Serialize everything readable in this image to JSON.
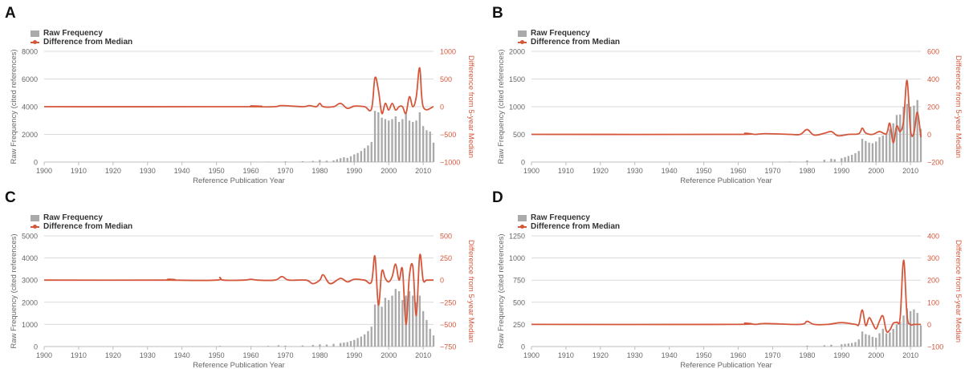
{
  "colors": {
    "bar": "#aaaaaa",
    "line": "#d4573b",
    "grid": "#d9d9d9",
    "axis_text": "#666666"
  },
  "chart_data": [
    {
      "panel": "A",
      "type": "bar+line",
      "legend": [
        "Raw Frequency",
        "Difference from Median"
      ],
      "xlabel": "Reference Publication Year",
      "ylabel_left": "Raw Frequency (cited references)",
      "ylabel_right": "Difference from 5-year Median",
      "xlim": [
        1900,
        2013
      ],
      "xticks": [
        1900,
        1910,
        1920,
        1930,
        1940,
        1950,
        1960,
        1970,
        1980,
        1990,
        2000,
        2010
      ],
      "ylim_left": [
        0,
        8000
      ],
      "yticks_left": [
        0,
        2000,
        4000,
        6000,
        8000
      ],
      "ylim_right": [
        -1000,
        1000
      ],
      "yticks_right": [
        -1000,
        -500,
        0,
        500,
        1000
      ],
      "bars": {
        "x": [
          1960,
          1965,
          1970,
          1975,
          1978,
          1980,
          1982,
          1984,
          1985,
          1986,
          1987,
          1988,
          1989,
          1990,
          1991,
          1992,
          1993,
          1994,
          1995,
          1996,
          1997,
          1998,
          1999,
          2000,
          2001,
          2002,
          2003,
          2004,
          2005,
          2006,
          2007,
          2008,
          2009,
          2010,
          2011,
          2012,
          2013
        ],
        "values": [
          20,
          30,
          50,
          60,
          80,
          150,
          100,
          120,
          200,
          280,
          350,
          300,
          420,
          550,
          650,
          800,
          1000,
          1200,
          1450,
          3700,
          3600,
          3200,
          3100,
          3000,
          3100,
          3300,
          2900,
          3100,
          3500,
          3000,
          2900,
          3000,
          3600,
          2600,
          2300,
          2200,
          1400
        ]
      },
      "diff_line": {
        "x": [
          1900,
          1958,
          1960,
          1962,
          1967,
          1969,
          1975,
          1977,
          1979,
          1980,
          1981,
          1984,
          1986,
          1988,
          1990,
          1993,
          1995,
          1996,
          1997,
          1998,
          1999,
          2000,
          2001,
          2002,
          2003,
          2004,
          2005,
          2006,
          2007,
          2008,
          2009,
          2010,
          2013
        ],
        "values": [
          0,
          0,
          15,
          0,
          0,
          20,
          0,
          20,
          0,
          60,
          0,
          0,
          60,
          -30,
          10,
          0,
          -40,
          520,
          300,
          -120,
          60,
          -60,
          60,
          -60,
          0,
          0,
          -120,
          180,
          0,
          180,
          700,
          0,
          0
        ]
      }
    },
    {
      "panel": "B",
      "type": "bar+line",
      "legend": [
        "Raw Frequency",
        "Difference from Median"
      ],
      "xlabel": "Reference Publication Year",
      "ylabel_left": "Raw Frequency (cited references)",
      "ylabel_right": "Difference from 5-year Median",
      "xlim": [
        1900,
        2013
      ],
      "xticks": [
        1900,
        1910,
        1920,
        1930,
        1940,
        1950,
        1960,
        1970,
        1980,
        1990,
        2000,
        2010
      ],
      "ylim_left": [
        0,
        2000
      ],
      "yticks_left": [
        0,
        500,
        1000,
        1500,
        2000
      ],
      "ylim_right": [
        -200,
        600
      ],
      "yticks_right": [
        -200,
        0,
        200,
        400,
        600
      ],
      "bars": {
        "x": [
          1975,
          1980,
          1985,
          1987,
          1988,
          1990,
          1991,
          1992,
          1993,
          1994,
          1995,
          1996,
          1997,
          1998,
          1999,
          2000,
          2001,
          2002,
          2003,
          2004,
          2005,
          2006,
          2007,
          2008,
          2009,
          2010,
          2011,
          2012,
          2013
        ],
        "values": [
          10,
          30,
          40,
          60,
          50,
          70,
          90,
          110,
          130,
          160,
          200,
          420,
          380,
          350,
          340,
          370,
          450,
          480,
          520,
          600,
          700,
          850,
          860,
          1000,
          1050,
          1000,
          1020,
          1120,
          600
        ]
      },
      "diff_line": {
        "x": [
          1900,
          1958,
          1962,
          1965,
          1968,
          1975,
          1978,
          1980,
          1982,
          1985,
          1987,
          1989,
          1992,
          1995,
          1996,
          1997,
          1999,
          2001,
          2003,
          2004,
          2005,
          2006,
          2007,
          2008,
          2009,
          2010,
          2011,
          2012,
          2013
        ],
        "values": [
          0,
          0,
          8,
          0,
          5,
          0,
          0,
          35,
          -5,
          8,
          20,
          -10,
          0,
          5,
          45,
          10,
          0,
          20,
          5,
          80,
          -60,
          60,
          20,
          100,
          390,
          30,
          10,
          160,
          -20
        ]
      }
    },
    {
      "panel": "C",
      "type": "bar+line",
      "legend": [
        "Raw Frequency",
        "Difference from Median"
      ],
      "xlabel": "Reference Publication Year",
      "ylabel_left": "Raw Frequency (cited references)",
      "ylabel_right": "Difference from 5-year Median",
      "xlim": [
        1900,
        2013
      ],
      "xticks": [
        1900,
        1910,
        1920,
        1930,
        1940,
        1950,
        1960,
        1970,
        1980,
        1990,
        2000,
        2010
      ],
      "ylim_left": [
        0,
        5000
      ],
      "yticks_left": [
        0,
        1000,
        2000,
        3000,
        4000,
        5000
      ],
      "ylim_right": [
        -750,
        500
      ],
      "yticks_right": [
        -750,
        -500,
        -250,
        0,
        250,
        500
      ],
      "bars": {
        "x": [
          1951,
          1960,
          1965,
          1968,
          1970,
          1975,
          1978,
          1980,
          1982,
          1984,
          1986,
          1987,
          1988,
          1989,
          1990,
          1991,
          1992,
          1993,
          1994,
          1995,
          1996,
          1997,
          1998,
          1999,
          2000,
          2001,
          2002,
          2003,
          2004,
          2005,
          2006,
          2007,
          2008,
          2009,
          2010,
          2011,
          2012,
          2013
        ],
        "values": [
          30,
          20,
          30,
          60,
          40,
          50,
          70,
          100,
          90,
          120,
          160,
          180,
          200,
          250,
          300,
          380,
          450,
          550,
          700,
          900,
          1900,
          2000,
          1800,
          2200,
          2100,
          2300,
          2600,
          2500,
          2100,
          2300,
          2500,
          2300,
          2000,
          2300,
          1600,
          1200,
          800,
          500
        ]
      },
      "diff_line": {
        "x": [
          1900,
          1935,
          1936,
          1937,
          1950,
          1951,
          1952,
          1958,
          1960,
          1962,
          1967,
          1969,
          1971,
          1976,
          1978,
          1980,
          1981,
          1983,
          1986,
          1988,
          1990,
          1993,
          1995,
          1996,
          1997,
          1998,
          1999,
          2000,
          2001,
          2002,
          2003,
          2004,
          2005,
          2006,
          2007,
          2008,
          2009,
          2010,
          2011,
          2013
        ],
        "values": [
          0,
          0,
          10,
          0,
          0,
          30,
          0,
          0,
          10,
          0,
          0,
          40,
          0,
          0,
          -40,
          0,
          60,
          -40,
          20,
          -20,
          10,
          0,
          -20,
          270,
          -280,
          100,
          20,
          -20,
          40,
          180,
          0,
          120,
          -500,
          50,
          150,
          -400,
          280,
          0,
          0,
          0
        ]
      }
    },
    {
      "panel": "D",
      "type": "bar+line",
      "legend": [
        "Raw Frequency",
        "Difference from Median"
      ],
      "xlabel": "Reference Publication Year",
      "ylabel_left": "Raw Frequency (cited references)",
      "ylabel_right": "Difference from 5-year Median",
      "xlim": [
        1900,
        2013
      ],
      "xticks": [
        1900,
        1910,
        1920,
        1930,
        1940,
        1950,
        1960,
        1970,
        1980,
        1990,
        2000,
        2010
      ],
      "ylim_left": [
        0,
        1250
      ],
      "yticks_left": [
        0,
        250,
        500,
        750,
        1000,
        1250
      ],
      "ylim_right": [
        -100,
        400
      ],
      "yticks_right": [
        -100,
        0,
        100,
        200,
        300,
        400
      ],
      "bars": {
        "x": [
          1980,
          1985,
          1987,
          1990,
          1991,
          1992,
          1993,
          1994,
          1995,
          1996,
          1997,
          1998,
          1999,
          2000,
          2001,
          2002,
          2003,
          2004,
          2005,
          2006,
          2007,
          2008,
          2009,
          2010,
          2011,
          2012,
          2013
        ],
        "values": [
          10,
          15,
          20,
          25,
          30,
          35,
          40,
          50,
          80,
          170,
          140,
          130,
          110,
          100,
          150,
          200,
          150,
          160,
          200,
          250,
          280,
          350,
          430,
          400,
          420,
          380,
          240
        ]
      },
      "diff_line": {
        "x": [
          1900,
          1958,
          1962,
          1965,
          1968,
          1978,
          1980,
          1982,
          1986,
          1990,
          1994,
          1995,
          1996,
          1997,
          1998,
          1999,
          2000,
          2001,
          2002,
          2003,
          2004,
          2005,
          2006,
          2007,
          2008,
          2009,
          2010,
          2011,
          2013
        ],
        "values": [
          0,
          0,
          6,
          0,
          4,
          0,
          14,
          0,
          0,
          8,
          0,
          0,
          65,
          -5,
          30,
          5,
          -20,
          15,
          38,
          -30,
          -25,
          5,
          10,
          30,
          290,
          40,
          0,
          0,
          0
        ]
      }
    }
  ]
}
